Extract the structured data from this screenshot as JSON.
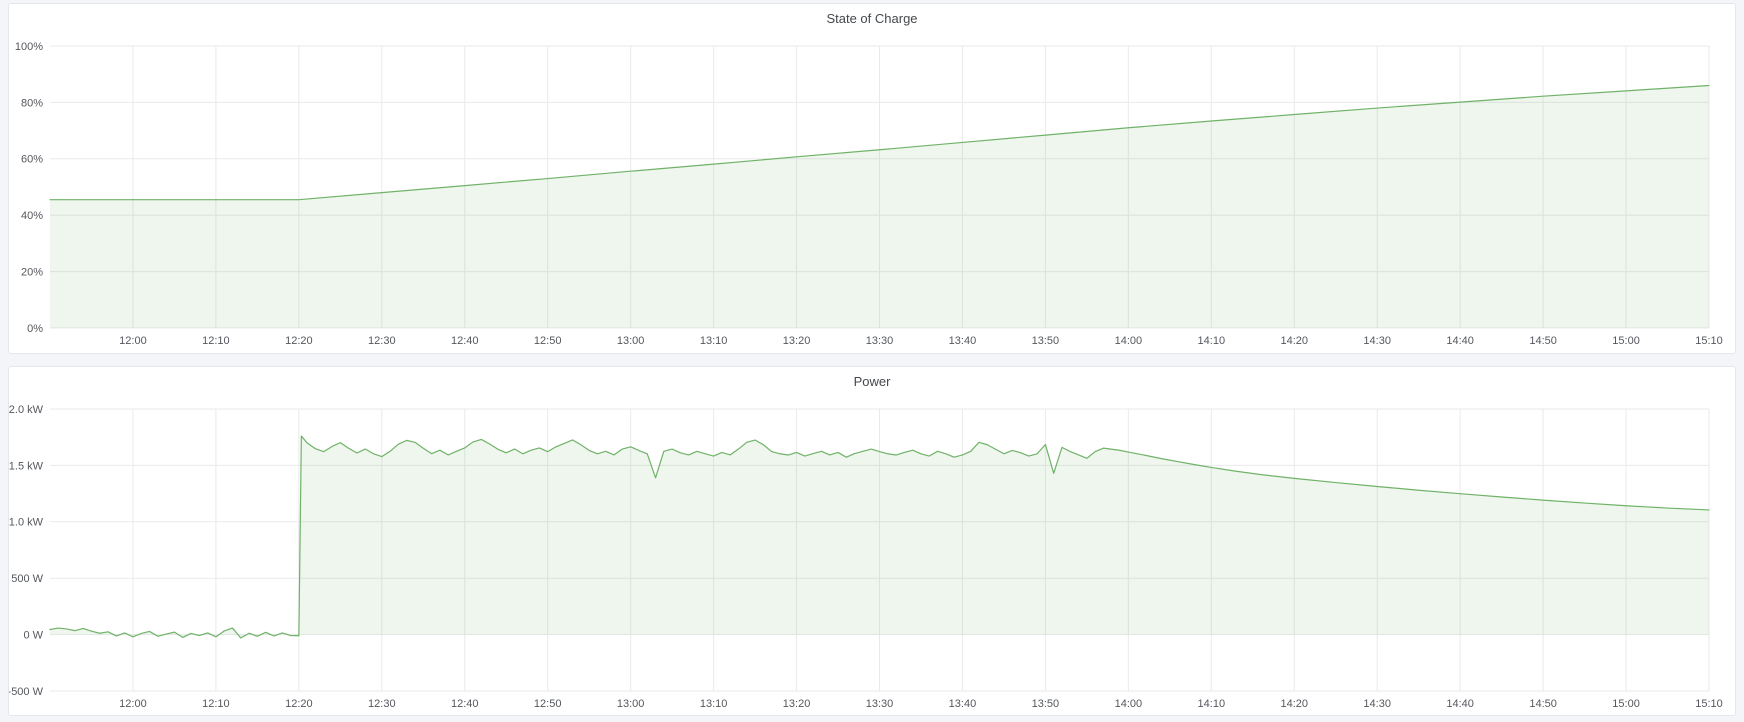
{
  "colors": {
    "page_background": "#f3f5f9",
    "panel_background": "#ffffff",
    "panel_border": "#e4e7ec",
    "grid": "#e9eaec",
    "tick_text": "#54575d",
    "title_text": "#44484d",
    "series_line": "#70b268",
    "series_fill": "rgba(112,178,104,0.12)"
  },
  "chart_data": [
    {
      "type": "area",
      "title": "State of Charge",
      "xlabel": "",
      "ylabel": "",
      "ylim": [
        0,
        100
      ],
      "x_range_minutes": [
        0,
        200
      ],
      "x_axis_note": "minutes after 11:50; plot spans 11:50 to 15:10",
      "grid": true,
      "legend": "none",
      "x_tick_t": [
        10,
        20,
        30,
        40,
        50,
        60,
        70,
        80,
        90,
        100,
        110,
        120,
        130,
        140,
        150,
        160,
        170,
        180,
        190,
        200
      ],
      "x_tick_labels": [
        "12:00",
        "12:10",
        "12:20",
        "12:30",
        "12:40",
        "12:50",
        "13:00",
        "13:10",
        "13:20",
        "13:30",
        "13:40",
        "13:50",
        "14:00",
        "14:10",
        "14:20",
        "14:30",
        "14:40",
        "14:50",
        "15:00",
        "15:10"
      ],
      "y_ticks": [
        {
          "v": 0,
          "label": "0%"
        },
        {
          "v": 20,
          "label": "20%"
        },
        {
          "v": 40,
          "label": "40%"
        },
        {
          "v": 60,
          "label": "60%"
        },
        {
          "v": 80,
          "label": "80%"
        },
        {
          "v": 100,
          "label": "100%"
        }
      ],
      "series": [
        {
          "name": "State of Charge",
          "points": [
            [
              0,
              45.5
            ],
            [
              10,
              45.5
            ],
            [
              20,
              45.5
            ],
            [
              30,
              45.5
            ],
            [
              40,
              48.0
            ],
            [
              50,
              50.5
            ],
            [
              60,
              53.0
            ],
            [
              70,
              55.6
            ],
            [
              80,
              58.1
            ],
            [
              90,
              60.7
            ],
            [
              100,
              63.2
            ],
            [
              110,
              65.8
            ],
            [
              120,
              68.4
            ],
            [
              130,
              71.0
            ],
            [
              140,
              73.4
            ],
            [
              150,
              75.7
            ],
            [
              160,
              78.0
            ],
            [
              170,
              80.1
            ],
            [
              180,
              82.2
            ],
            [
              190,
              84.1
            ],
            [
              200,
              86.0
            ]
          ]
        }
      ]
    },
    {
      "type": "area",
      "title": "Power",
      "xlabel": "",
      "ylabel": "",
      "ylim": [
        -500,
        2000
      ],
      "x_range_minutes": [
        0,
        200
      ],
      "x_axis_note": "minutes after 11:50; plot spans 11:50 to 15:10; values in watts",
      "grid": true,
      "legend": "none",
      "x_tick_t": [
        10,
        20,
        30,
        40,
        50,
        60,
        70,
        80,
        90,
        100,
        110,
        120,
        130,
        140,
        150,
        160,
        170,
        180,
        190,
        200
      ],
      "x_tick_labels": [
        "12:00",
        "12:10",
        "12:20",
        "12:30",
        "12:40",
        "12:50",
        "13:00",
        "13:10",
        "13:20",
        "13:30",
        "13:40",
        "13:50",
        "14:00",
        "14:10",
        "14:20",
        "14:30",
        "14:40",
        "14:50",
        "15:00",
        "15:10"
      ],
      "y_ticks": [
        {
          "v": -500,
          "label": "-500 W"
        },
        {
          "v": 0,
          "label": "0 W"
        },
        {
          "v": 500,
          "label": "500 W"
        },
        {
          "v": 1000,
          "label": "1.0 kW"
        },
        {
          "v": 1500,
          "label": "1.5 kW"
        },
        {
          "v": 2000,
          "label": "2.0 kW"
        }
      ],
      "series": [
        {
          "name": "Power",
          "points": [
            [
              0,
              45
            ],
            [
              1,
              58
            ],
            [
              2,
              50
            ],
            [
              3,
              35
            ],
            [
              4,
              55
            ],
            [
              5,
              30
            ],
            [
              6,
              12
            ],
            [
              7,
              25
            ],
            [
              8,
              -12
            ],
            [
              9,
              15
            ],
            [
              10,
              -20
            ],
            [
              11,
              10
            ],
            [
              12,
              28
            ],
            [
              13,
              -15
            ],
            [
              14,
              5
            ],
            [
              15,
              22
            ],
            [
              16,
              -25
            ],
            [
              17,
              10
            ],
            [
              18,
              -8
            ],
            [
              19,
              15
            ],
            [
              20,
              -20
            ],
            [
              21,
              32
            ],
            [
              22,
              58
            ],
            [
              23,
              -30
            ],
            [
              24,
              12
            ],
            [
              25,
              -15
            ],
            [
              26,
              20
            ],
            [
              27,
              -12
            ],
            [
              28,
              15
            ],
            [
              29,
              -8
            ],
            [
              30,
              -10
            ],
            [
              30.3,
              1760
            ],
            [
              31,
              1700
            ],
            [
              32,
              1648
            ],
            [
              33,
              1622
            ],
            [
              34,
              1668
            ],
            [
              35,
              1702
            ],
            [
              36,
              1652
            ],
            [
              37,
              1610
            ],
            [
              38,
              1645
            ],
            [
              39,
              1603
            ],
            [
              40,
              1578
            ],
            [
              41,
              1625
            ],
            [
              42,
              1688
            ],
            [
              43,
              1722
            ],
            [
              44,
              1705
            ],
            [
              45,
              1652
            ],
            [
              46,
              1604
            ],
            [
              47,
              1635
            ],
            [
              48,
              1593
            ],
            [
              49,
              1625
            ],
            [
              50,
              1655
            ],
            [
              51,
              1708
            ],
            [
              52,
              1730
            ],
            [
              53,
              1690
            ],
            [
              54,
              1643
            ],
            [
              55,
              1612
            ],
            [
              56,
              1645
            ],
            [
              57,
              1603
            ],
            [
              58,
              1635
            ],
            [
              59,
              1655
            ],
            [
              60,
              1622
            ],
            [
              61,
              1665
            ],
            [
              62,
              1695
            ],
            [
              63,
              1726
            ],
            [
              64,
              1683
            ],
            [
              65,
              1633
            ],
            [
              66,
              1603
            ],
            [
              67,
              1625
            ],
            [
              68,
              1593
            ],
            [
              69,
              1645
            ],
            [
              70,
              1665
            ],
            [
              71,
              1632
            ],
            [
              72,
              1603
            ],
            [
              73,
              1390
            ],
            [
              74,
              1625
            ],
            [
              75,
              1645
            ],
            [
              76,
              1612
            ],
            [
              77,
              1593
            ],
            [
              78,
              1625
            ],
            [
              79,
              1603
            ],
            [
              80,
              1583
            ],
            [
              81,
              1615
            ],
            [
              82,
              1593
            ],
            [
              83,
              1645
            ],
            [
              84,
              1705
            ],
            [
              85,
              1725
            ],
            [
              86,
              1683
            ],
            [
              87,
              1623
            ],
            [
              88,
              1603
            ],
            [
              89,
              1592
            ],
            [
              90,
              1615
            ],
            [
              91,
              1583
            ],
            [
              92,
              1605
            ],
            [
              93,
              1625
            ],
            [
              94,
              1593
            ],
            [
              95,
              1615
            ],
            [
              96,
              1573
            ],
            [
              97,
              1605
            ],
            [
              98,
              1625
            ],
            [
              99,
              1645
            ],
            [
              100,
              1623
            ],
            [
              101,
              1603
            ],
            [
              102,
              1592
            ],
            [
              103,
              1615
            ],
            [
              104,
              1635
            ],
            [
              105,
              1603
            ],
            [
              106,
              1583
            ],
            [
              107,
              1625
            ],
            [
              108,
              1603
            ],
            [
              109,
              1573
            ],
            [
              110,
              1593
            ],
            [
              111,
              1625
            ],
            [
              112,
              1705
            ],
            [
              113,
              1683
            ],
            [
              114,
              1643
            ],
            [
              115,
              1603
            ],
            [
              116,
              1633
            ],
            [
              117,
              1613
            ],
            [
              118,
              1583
            ],
            [
              119,
              1603
            ],
            [
              120,
              1685
            ],
            [
              121,
              1430
            ],
            [
              122,
              1660
            ],
            [
              123,
              1623
            ],
            [
              124,
              1593
            ],
            [
              125,
              1563
            ],
            [
              126,
              1623
            ],
            [
              127,
              1653
            ],
            [
              128,
              1643
            ],
            [
              129,
              1633
            ],
            [
              130,
              1618
            ],
            [
              132,
              1590
            ],
            [
              134,
              1560
            ],
            [
              136,
              1533
            ],
            [
              138,
              1507
            ],
            [
              140,
              1482
            ],
            [
              143,
              1448
            ],
            [
              146,
              1418
            ],
            [
              150,
              1385
            ],
            [
              155,
              1348
            ],
            [
              160,
              1313
            ],
            [
              165,
              1280
            ],
            [
              170,
              1249
            ],
            [
              175,
              1220
            ],
            [
              180,
              1192
            ],
            [
              185,
              1166
            ],
            [
              190,
              1142
            ],
            [
              195,
              1122
            ],
            [
              200,
              1105
            ]
          ]
        }
      ]
    }
  ]
}
